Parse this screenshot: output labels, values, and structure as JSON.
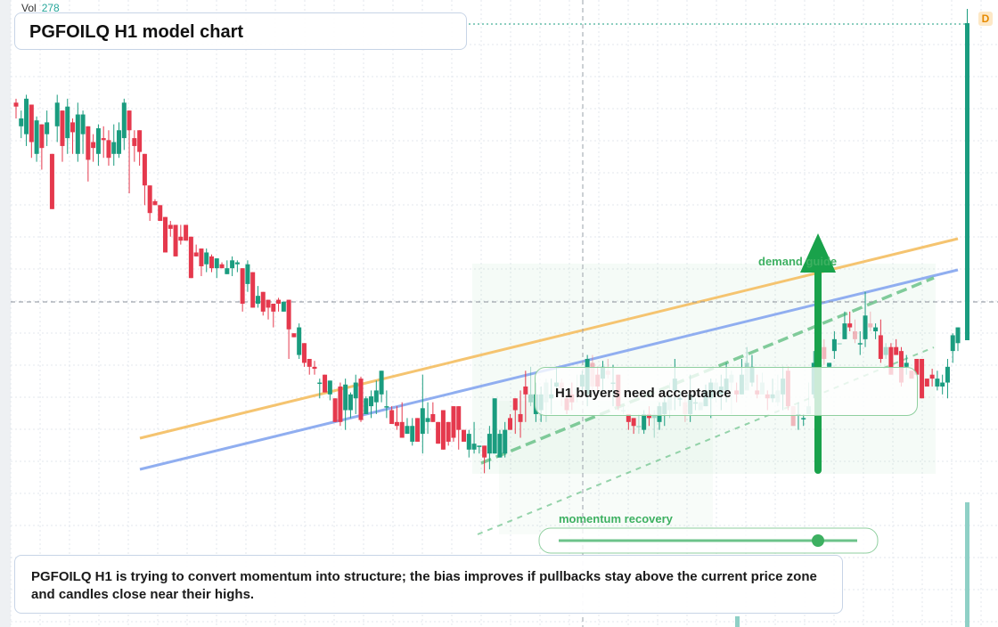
{
  "header": {
    "vol_label": "Vol",
    "vol_value": "278"
  },
  "title": "PGFOILQ H1 model chart",
  "callout": "H1 buyers need acceptance",
  "note": "PGFOILQ H1 is trying to convert momentum into structure; the bias improves if pullbacks stay above the current price zone and candles close near their highs.",
  "zones": {
    "demand_label": "demand guide",
    "momentum_label": "momentum recovery"
  },
  "badge": "D",
  "colors": {
    "up": "#1a9c7f",
    "down": "#e5394d",
    "orange": "#f5c470",
    "blue": "#90aef0",
    "green": "#22aa4f"
  },
  "chart_data": {
    "type": "candlestick",
    "title": "PGFOILQ H1 model chart",
    "ohlc": [
      [
        266,
        264,
        268,
        258
      ],
      [
        254,
        258,
        262,
        248
      ],
      [
        250,
        268,
        270,
        244
      ],
      [
        265,
        246,
        248,
        238
      ],
      [
        240,
        257,
        259,
        236
      ],
      [
        255,
        243,
        245,
        232
      ],
      [
        250,
        256,
        262,
        244
      ],
      [
        240,
        212,
        218,
        236
      ],
      [
        254,
        266,
        270,
        246
      ],
      [
        262,
        244,
        248,
        236
      ],
      [
        248,
        264,
        268,
        240
      ],
      [
        256,
        251,
        258,
        240
      ],
      [
        240,
        260,
        266,
        236
      ],
      [
        250,
        260,
        262,
        240
      ],
      [
        254,
        237,
        240,
        226
      ],
      [
        246,
        243,
        250,
        236
      ],
      [
        240,
        253,
        255,
        234
      ],
      [
        248,
        247,
        254,
        238
      ],
      [
        247,
        238,
        252,
        234
      ],
      [
        240,
        246,
        255,
        234
      ],
      [
        240,
        252,
        256,
        238
      ],
      [
        248,
        266,
        268,
        242
      ],
      [
        262,
        252,
        254,
        220
      ],
      [
        248,
        244,
        252,
        236
      ],
      [
        252,
        241,
        245,
        234
      ],
      [
        240,
        224,
        227,
        214
      ],
      [
        224,
        210,
        214,
        206
      ],
      [
        216,
        214,
        217,
        214
      ],
      [
        214,
        206,
        208,
        210
      ],
      [
        208,
        190,
        194,
        210
      ],
      [
        204,
        202,
        206,
        198
      ],
      [
        204,
        188,
        190,
        210
      ],
      [
        198,
        196,
        204,
        194
      ],
      [
        204,
        196,
        200,
        200
      ],
      [
        198,
        177,
        182,
        216
      ],
      [
        190,
        188,
        194,
        188
      ],
      [
        192,
        183,
        188,
        178
      ],
      [
        184,
        190,
        192,
        180
      ],
      [
        188,
        182,
        189,
        180
      ],
      [
        182,
        187,
        187,
        177
      ],
      [
        184,
        182,
        185,
        184
      ],
      [
        179,
        182,
        186,
        179
      ],
      [
        182,
        186,
        188,
        178
      ],
      [
        184,
        185,
        186,
        180
      ],
      [
        182,
        164,
        178,
        160
      ],
      [
        174,
        184,
        186,
        170
      ],
      [
        180,
        162,
        166,
        170
      ],
      [
        164,
        168,
        173,
        162
      ],
      [
        170,
        160,
        165,
        158
      ],
      [
        166,
        162,
        165,
        156
      ],
      [
        164,
        160,
        160,
        152
      ],
      [
        166,
        164,
        167,
        160
      ],
      [
        160,
        165,
        164,
        160
      ],
      [
        166,
        151,
        154,
        136
      ],
      [
        149,
        147,
        146,
        150
      ],
      [
        138,
        152,
        154,
        136
      ],
      [
        144,
        134,
        140,
        132
      ],
      [
        136,
        132,
        134,
        128
      ],
      [
        132,
        131,
        135,
        128
      ],
      [
        124,
        124,
        126,
        116
      ],
      [
        128,
        119,
        125,
        119
      ],
      [
        118,
        125,
        119,
        115
      ],
      [
        116,
        104,
        116,
        104
      ],
      [
        122,
        104,
        124,
        102
      ],
      [
        110,
        123,
        126,
        100
      ],
      [
        110,
        118,
        119,
        106
      ],
      [
        116,
        124,
        128,
        108
      ],
      [
        126,
        105,
        127,
        104
      ],
      [
        108,
        116,
        117,
        108
      ],
      [
        112,
        117,
        120,
        106
      ],
      [
        114,
        120,
        125,
        108
      ],
      [
        118,
        130,
        130,
        114
      ],
      [
        112,
        112,
        120,
        106
      ],
      [
        110,
        103,
        112,
        104
      ],
      [
        104,
        102,
        112,
        100
      ],
      [
        104,
        96,
        114,
        96
      ],
      [
        98,
        102,
        106,
        98
      ],
      [
        94,
        102,
        106,
        92
      ],
      [
        106,
        94,
        106,
        94
      ],
      [
        98,
        111,
        128,
        88
      ],
      [
        104,
        106,
        114,
        98
      ],
      [
        108,
        104,
        114,
        108
      ],
      [
        104,
        93,
        100,
        96
      ],
      [
        110,
        90,
        98,
        96
      ],
      [
        104,
        94,
        104,
        92
      ],
      [
        112,
        96,
        104,
        94
      ],
      [
        112,
        100,
        112,
        90
      ],
      [
        100,
        94,
        100,
        96
      ],
      [
        90,
        98,
        100,
        86
      ],
      [
        90,
        93,
        104,
        88
      ],
      [
        92,
        92,
        90,
        88
      ],
      [
        92,
        86,
        92,
        78
      ],
      [
        88,
        98,
        102,
        80
      ],
      [
        88,
        116,
        116,
        88
      ],
      [
        86,
        98,
        100,
        92
      ],
      [
        88,
        100,
        104,
        86
      ],
      [
        106,
        100,
        108,
        104
      ],
      [
        116,
        110,
        116,
        98
      ],
      [
        108,
        104,
        120,
        96
      ],
      [
        122,
        118,
        130,
        104
      ],
      [
        114,
        118,
        132,
        112
      ],
      [
        108,
        118,
        124,
        104
      ],
      [
        110,
        118,
        122,
        104
      ],
      [
        114,
        124,
        126,
        104
      ],
      [
        116,
        118,
        126,
        108
      ],
      [
        122,
        124,
        132,
        118
      ],
      [
        124,
        121,
        126,
        112
      ],
      [
        116,
        110,
        118,
        108
      ],
      [
        118,
        114,
        124,
        110
      ],
      [
        120,
        121,
        128,
        114
      ],
      [
        122,
        128,
        130,
        118
      ],
      [
        118,
        136,
        138,
        112
      ],
      [
        134,
        122,
        138,
        120
      ],
      [
        128,
        122,
        132,
        118
      ],
      [
        126,
        132,
        135,
        120
      ],
      [
        130,
        128,
        136,
        126
      ],
      [
        124,
        124,
        133,
        112
      ],
      [
        128,
        112,
        128,
        110
      ],
      [
        110,
        110,
        112,
        108
      ],
      [
        108,
        104,
        108,
        100
      ],
      [
        106,
        102,
        106,
        98
      ],
      [
        102,
        102,
        108,
        98
      ],
      [
        100,
        108,
        110,
        98
      ],
      [
        108,
        106,
        112,
        102
      ],
      [
        106,
        108,
        110,
        96
      ],
      [
        104,
        112,
        114,
        100
      ],
      [
        108,
        114,
        120,
        102
      ],
      [
        110,
        118,
        124,
        106
      ],
      [
        120,
        126,
        136,
        110
      ],
      [
        116,
        116,
        120,
        112
      ],
      [
        114,
        108,
        118,
        104
      ],
      [
        108,
        118,
        128,
        104
      ],
      [
        114,
        114,
        116,
        110
      ],
      [
        110,
        114,
        112,
        110
      ],
      [
        112,
        120,
        123,
        112
      ],
      [
        116,
        124,
        126,
        106
      ],
      [
        118,
        124,
        126,
        114
      ],
      [
        118,
        122,
        128,
        110
      ],
      [
        120,
        126,
        134,
        114
      ],
      [
        124,
        128,
        130,
        108
      ],
      [
        120,
        118,
        124,
        114
      ],
      [
        118,
        128,
        136,
        118
      ],
      [
        120,
        134,
        142,
        120
      ],
      [
        124,
        132,
        138,
        122
      ],
      [
        120,
        118,
        128,
        116
      ],
      [
        118,
        124,
        129,
        118
      ],
      [
        118,
        116,
        120,
        110
      ],
      [
        116,
        118,
        126,
        114
      ],
      [
        114,
        120,
        128,
        112
      ],
      [
        118,
        126,
        132,
        110
      ],
      [
        130,
        112,
        132,
        110
      ],
      [
        112,
        102,
        112,
        102
      ],
      [
        108,
        108,
        114,
        100
      ],
      [
        106,
        106,
        108,
        102
      ],
      [
        108,
        112,
        124,
        108
      ],
      [
        118,
        134,
        140,
        116
      ],
      [
        136,
        144,
        149,
        134
      ],
      [
        142,
        136,
        146,
        133
      ],
      [
        132,
        134,
        132,
        134
      ],
      [
        140,
        146,
        150,
        136
      ],
      [
        144,
        144,
        144,
        144
      ],
      [
        146,
        154,
        160,
        148
      ],
      [
        154,
        152,
        160,
        150
      ],
      [
        150,
        146,
        156,
        144
      ],
      [
        144,
        144,
        150,
        138
      ],
      [
        146,
        158,
        170,
        142
      ],
      [
        154,
        152,
        160,
        150
      ],
      [
        150,
        152,
        154,
        146
      ],
      [
        148,
        136,
        156,
        134
      ],
      [
        138,
        142,
        144,
        136
      ],
      [
        142,
        128,
        144,
        130
      ],
      [
        142,
        138,
        146,
        140
      ],
      [
        140,
        124,
        142,
        122
      ],
      [
        132,
        134,
        138,
        128
      ],
      [
        130,
        126,
        126,
        128
      ],
      [
        136,
        128,
        130,
        130
      ],
      [
        136,
        116,
        118,
        130
      ],
      [
        126,
        122,
        124,
        126
      ],
      [
        128,
        126,
        131,
        122
      ],
      [
        122,
        126,
        130,
        120
      ],
      [
        122,
        124,
        128,
        118
      ],
      [
        124,
        132,
        136,
        116
      ],
      [
        140,
        148,
        149,
        134
      ],
      [
        144,
        152,
        152,
        140
      ]
    ]
  }
}
